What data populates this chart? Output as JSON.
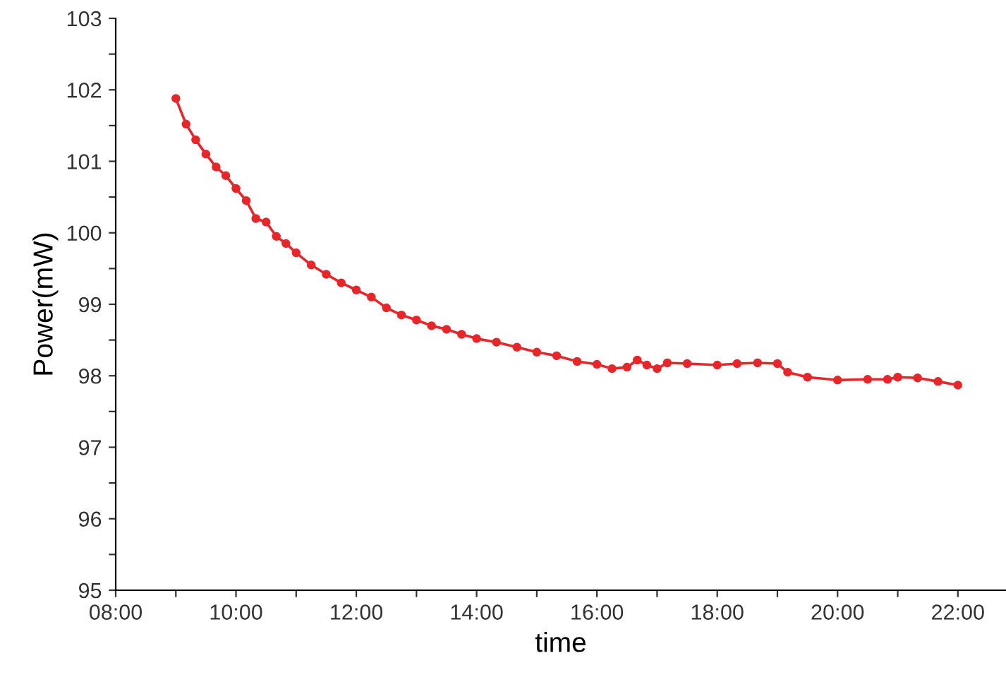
{
  "chart_data": {
    "type": "line",
    "xlabel": "time",
    "ylabel": "Power(mW)",
    "marker": "circle",
    "line_style": "solid",
    "grid": false,
    "legend": false,
    "xlim": [
      8,
      22.8
    ],
    "xticks": [
      {
        "value": 8,
        "label": "08:00"
      },
      {
        "value": 9,
        "label": null
      },
      {
        "value": 10,
        "label": "10:00"
      },
      {
        "value": 11,
        "label": null
      },
      {
        "value": 12,
        "label": "12:00"
      },
      {
        "value": 13,
        "label": null
      },
      {
        "value": 14,
        "label": "14:00"
      },
      {
        "value": 15,
        "label": null
      },
      {
        "value": 16,
        "label": "16:00"
      },
      {
        "value": 17,
        "label": null
      },
      {
        "value": 18,
        "label": "18:00"
      },
      {
        "value": 19,
        "label": null
      },
      {
        "value": 20,
        "label": "20:00"
      },
      {
        "value": 21,
        "label": null
      },
      {
        "value": 22,
        "label": "22:00"
      }
    ],
    "ylim": [
      95,
      103
    ],
    "yticks": [
      95,
      {
        "value": 95.5,
        "label": null
      },
      96,
      {
        "value": 96.5,
        "label": null
      },
      97,
      {
        "value": 97.5,
        "label": null
      },
      98,
      {
        "value": 98.5,
        "label": null
      },
      99,
      {
        "value": 99.5,
        "label": null
      },
      100,
      {
        "value": 100.5,
        "label": null
      },
      101,
      {
        "value": 101.5,
        "label": null
      },
      102,
      {
        "value": 102.5,
        "label": null
      },
      103
    ],
    "series": [
      {
        "color": "#e8262a",
        "x": [
          9,
          9.17,
          9.33,
          9.5,
          9.67,
          9.83,
          10,
          10.17,
          10.33,
          10.5,
          10.67,
          10.83,
          11,
          11.25,
          11.5,
          11.75,
          12,
          12.25,
          12.5,
          12.75,
          13,
          13.25,
          13.5,
          13.75,
          14,
          14.33,
          14.67,
          15,
          15.33,
          15.67,
          16,
          16.25,
          16.5,
          16.67,
          16.83,
          17,
          17.17,
          17.5,
          18,
          18.33,
          18.67,
          19,
          19.17,
          19.5,
          20,
          20.5,
          20.83,
          21,
          21.33,
          21.67,
          22
        ],
        "values": [
          101.88,
          101.52,
          101.3,
          101.1,
          100.92,
          100.8,
          100.62,
          100.45,
          100.2,
          100.15,
          99.95,
          99.85,
          99.72,
          99.55,
          99.42,
          99.3,
          99.2,
          99.1,
          98.95,
          98.85,
          98.78,
          98.7,
          98.65,
          98.58,
          98.52,
          98.47,
          98.4,
          98.33,
          98.28,
          98.2,
          98.16,
          98.1,
          98.12,
          98.22,
          98.15,
          98.1,
          98.18,
          98.17,
          98.15,
          98.17,
          98.18,
          98.17,
          98.05,
          97.98,
          97.94,
          97.95,
          97.95,
          97.98,
          97.97,
          97.92,
          97.87
        ]
      }
    ]
  }
}
